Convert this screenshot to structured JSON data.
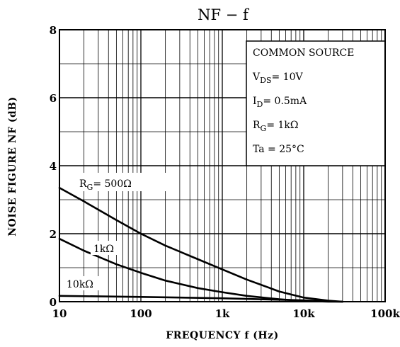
{
  "chart_data": {
    "type": "line",
    "title": "NF − f",
    "xlabel": "FREQUENCY  f  (Hz)",
    "ylabel": "NOISE FIGURE  NF  (dB)",
    "x_scale": "log",
    "xlim": [
      10,
      100000
    ],
    "ylim": [
      0,
      8
    ],
    "grid": true,
    "x_ticks": [
      {
        "value": 10,
        "label": "10"
      },
      {
        "value": 100,
        "label": "100"
      },
      {
        "value": 1000,
        "label": "1k"
      },
      {
        "value": 10000,
        "label": "10k"
      },
      {
        "value": 100000,
        "label": "100k"
      }
    ],
    "y_ticks": [
      {
        "value": 0,
        "label": "0"
      },
      {
        "value": 2,
        "label": "2"
      },
      {
        "value": 4,
        "label": "4"
      },
      {
        "value": 6,
        "label": "6"
      },
      {
        "value": 8,
        "label": "8"
      }
    ],
    "conditions": {
      "line1": "COMMON SOURCE",
      "line2_main": "V",
      "line2_sub": "DS",
      "line2_rest": "= 10V",
      "line3_main": "I",
      "line3_sub": "D",
      "line3_rest": "= 0.5mA",
      "line4_main": "R",
      "line4_sub": "G",
      "line4_rest": "= 1kΩ",
      "line5": "Ta = 25°C"
    },
    "series": [
      {
        "label_main": "R",
        "label_sub": "G",
        "label_rest": "= 500Ω",
        "x": [
          10,
          20,
          50,
          100,
          200,
          500,
          1000,
          2000,
          5000,
          10000,
          20000,
          30000
        ],
        "y": [
          3.35,
          2.95,
          2.4,
          2.0,
          1.65,
          1.25,
          0.95,
          0.65,
          0.3,
          0.12,
          0.03,
          0.0
        ]
      },
      {
        "label": "1kΩ",
        "x": [
          10,
          20,
          50,
          100,
          200,
          500,
          1000,
          2000,
          5000,
          10000,
          20000,
          30000
        ],
        "y": [
          1.85,
          1.5,
          1.1,
          0.85,
          0.62,
          0.4,
          0.28,
          0.17,
          0.07,
          0.02,
          0.0,
          0.0
        ]
      },
      {
        "label": "10kΩ",
        "x": [
          10,
          100,
          1000,
          10000,
          20000,
          30000
        ],
        "y": [
          0.17,
          0.14,
          0.1,
          0.04,
          0.01,
          0.0
        ]
      }
    ]
  }
}
